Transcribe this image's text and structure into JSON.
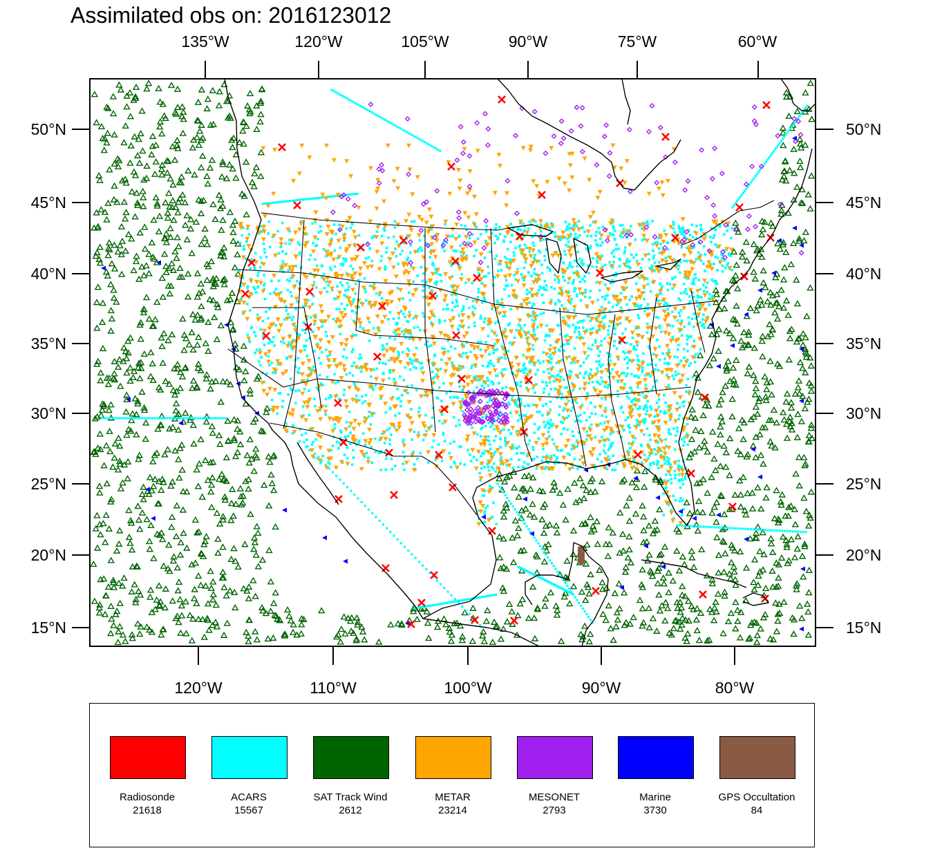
{
  "title": "Assimilated obs on: 2016123012",
  "map": {
    "lon_range": [
      -128.5,
      -73.9
    ],
    "lat_range": [
      13.6,
      53.5
    ],
    "top_lon_ticks": [
      "135°W",
      "120°W",
      "105°W",
      "90°W",
      "75°W",
      "60°W"
    ],
    "bottom_lon_ticks": [
      "120°W",
      "110°W",
      "100°W",
      "90°W",
      "80°W"
    ],
    "lat_ticks": [
      "15°N",
      "20°N",
      "25°N",
      "30°N",
      "35°N",
      "40°N",
      "45°N",
      "50°N"
    ],
    "colors": {
      "frame": "#000000",
      "coastline": "#000000",
      "background": "#ffffff"
    }
  },
  "legend": {
    "items": [
      {
        "name": "Radiosonde",
        "count": "21618",
        "color": "#ff0000",
        "marker": "x-cross"
      },
      {
        "name": "ACARS",
        "count": "15567",
        "color": "#00ffff",
        "marker": "filled-square"
      },
      {
        "name": "SAT Track Wind",
        "count": "2612",
        "color": "#006400",
        "marker": "hollow-triangle"
      },
      {
        "name": "METAR",
        "count": "23214",
        "color": "#ffa500",
        "marker": "down-triangle"
      },
      {
        "name": "MESONET",
        "count": "2793",
        "color": "#a020f0",
        "marker": "diamond"
      },
      {
        "name": "Marine",
        "count": "3730",
        "color": "#0000ff",
        "marker": "left-triangle"
      },
      {
        "name": "GPS Occultation",
        "count": "84",
        "color": "#8b5a45",
        "marker": "filled-square"
      }
    ]
  }
}
